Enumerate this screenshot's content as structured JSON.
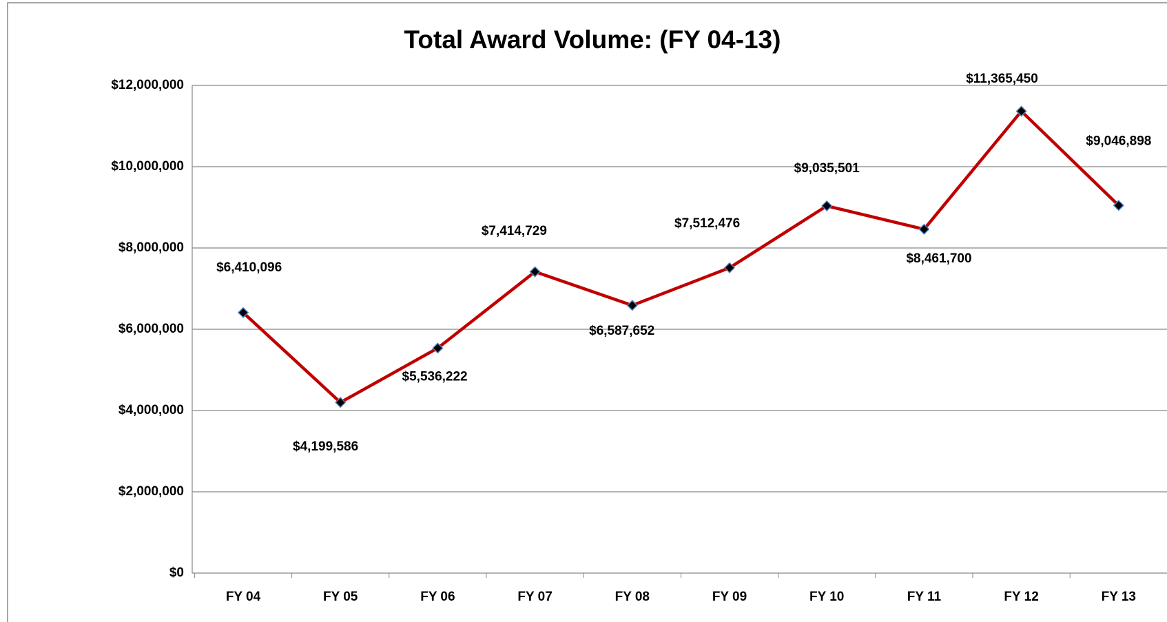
{
  "chart_data": {
    "type": "line",
    "title": "Total Award Volume:  (FY 04-13)",
    "categories": [
      "FY 04",
      "FY 05",
      "FY 06",
      "FY 07",
      "FY 08",
      "FY 09",
      "FY 10",
      "FY 11",
      "FY 12",
      "FY 13"
    ],
    "series": [
      {
        "name": "Total Award Volume",
        "color": "#c00000",
        "values": [
          6410096,
          4199586,
          5536222,
          7414729,
          6587652,
          7512476,
          9035501,
          8461700,
          11365450,
          9046898
        ],
        "value_labels": [
          "$6,410,096",
          "$4,199,586",
          "$5,536,222",
          "$7,414,729",
          "$6,587,652",
          "$7,512,476",
          "$9,035,501",
          "$8,461,700",
          "$11,365,450",
          "$9,046,898"
        ]
      }
    ],
    "ylim": [
      0,
      12000000
    ],
    "yticks": [
      {
        "value": 0,
        "label": "$0"
      },
      {
        "value": 2000000,
        "label": "$2,000,000"
      },
      {
        "value": 4000000,
        "label": "$4,000,000"
      },
      {
        "value": 6000000,
        "label": "$6,000,000"
      },
      {
        "value": 8000000,
        "label": "$8,000,000"
      },
      {
        "value": 10000000,
        "label": "$10,000,000"
      },
      {
        "value": 12000000,
        "label": "$12,000,000"
      }
    ],
    "grid": true
  }
}
